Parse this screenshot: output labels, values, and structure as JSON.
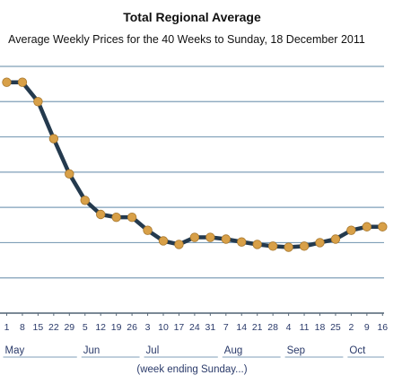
{
  "chart_data": {
    "type": "line",
    "title": "Total Regional Average",
    "subtitle": "Average Weekly Prices for the 40 Weeks to Sunday, 18 December 2011",
    "xlabel": "(week ending Sunday...)",
    "ylabel": "",
    "grid": true,
    "ylim": [
      0,
      7
    ],
    "x": [
      "1",
      "8",
      "15",
      "22",
      "29",
      "5",
      "12",
      "19",
      "26",
      "3",
      "10",
      "17",
      "24",
      "31",
      "7",
      "14",
      "21",
      "28",
      "4",
      "11",
      "18",
      "25",
      "2",
      "9",
      "16"
    ],
    "months": [
      {
        "label": "May",
        "start": 0
      },
      {
        "label": "Jun",
        "start": 5
      },
      {
        "label": "Jul",
        "start": 9
      },
      {
        "label": "Aug",
        "start": 14
      },
      {
        "label": "Sep",
        "start": 18
      },
      {
        "label": "Oct",
        "start": 22
      }
    ],
    "series": [
      {
        "values": [
          6.55,
          6.55,
          6.0,
          4.95,
          3.95,
          3.2,
          2.8,
          2.72,
          2.72,
          2.35,
          2.05,
          1.95,
          2.15,
          2.15,
          2.1,
          2.02,
          1.95,
          1.9,
          1.87,
          1.9,
          2.0,
          2.1,
          2.35,
          2.45,
          2.45
        ],
        "color": "#243a4e",
        "marker_color": "#d8a048"
      }
    ]
  }
}
